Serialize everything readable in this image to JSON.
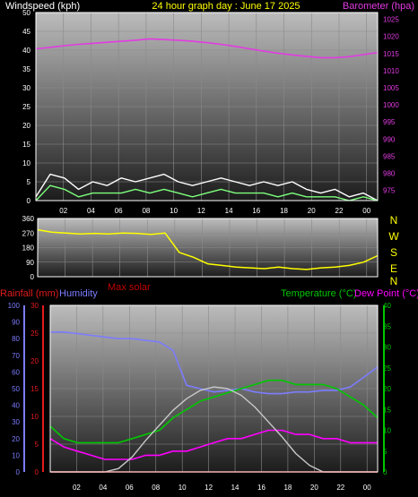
{
  "header": {
    "left": "Windspeed (kph)",
    "center": "24 hour graph day : June 17 2025",
    "right": "Barometer (hpa)"
  },
  "legend": {
    "rainfall": "Rainfall (mm)",
    "humidity": "Humidity",
    "max_solar": "Max solar",
    "temperature": "Temperature (°C)",
    "dew_point": "Dew Point (°C)"
  },
  "compass": [
    "N",
    "W",
    "S",
    "E",
    "N"
  ],
  "colors": {
    "background": "#000000",
    "windspeed": "#ffffff",
    "wind_avg": "#7cff7c",
    "wind_green": "#00b000",
    "barometer": "#e23be2",
    "direction": "#ffff00",
    "rainfall": "#e11b1b",
    "humidity": "#7c7cff",
    "max_solar": "#c8c8c8",
    "temperature": "#00c800",
    "dew_point": "#ff00ff",
    "max_solar_label": "#c00000"
  },
  "chart_data": [
    {
      "type": "line",
      "name": "wind_barometer",
      "title": "24 hour graph day : June 17 2025",
      "x_tick_labels": [
        "02",
        "04",
        "06",
        "08",
        "10",
        "12",
        "14",
        "16",
        "18",
        "20",
        "22",
        "00"
      ],
      "ylabel_left": "Windspeed (kph)",
      "ylim_left": [
        0,
        50
      ],
      "y_ticks_left": [
        "0",
        "5",
        "10",
        "15",
        "20",
        "25",
        "30",
        "35",
        "40",
        "45",
        "50"
      ],
      "ylabel_right": "Barometer (hpa)",
      "ylim_right": [
        972,
        1027
      ],
      "y_ticks_right": [
        "975",
        "980",
        "985",
        "990",
        "995",
        "1000",
        "1005",
        "1010",
        "1015",
        "1020",
        "1025"
      ],
      "grid": true,
      "series": [
        {
          "name": "Barometer (hpa)",
          "axis": "right",
          "x": [
            0,
            1,
            2,
            3,
            4,
            5,
            6,
            7,
            8,
            9,
            10,
            11,
            12,
            13,
            14,
            15,
            16,
            17,
            18,
            19,
            20,
            21,
            22,
            23,
            24
          ],
          "values": [
            1016.4,
            1016.8,
            1017.3,
            1017.7,
            1018.0,
            1018.3,
            1018.6,
            1018.9,
            1019.3,
            1019.1,
            1018.9,
            1018.6,
            1018.2,
            1017.7,
            1017.1,
            1016.4,
            1015.7,
            1015.1,
            1014.6,
            1014.2,
            1013.8,
            1013.8,
            1014.1,
            1014.7,
            1015.3
          ]
        },
        {
          "name": "Wind gust",
          "axis": "left",
          "x": [
            0,
            1,
            2,
            3,
            4,
            5,
            6,
            7,
            8,
            9,
            10,
            11,
            12,
            13,
            14,
            15,
            16,
            17,
            18,
            19,
            20,
            21,
            22,
            23,
            24
          ],
          "values": [
            1,
            7,
            6,
            3,
            5,
            4,
            6,
            5,
            6,
            7,
            5,
            4,
            5,
            6,
            5,
            4,
            5,
            4,
            5,
            3,
            2,
            3,
            1,
            2,
            0
          ]
        },
        {
          "name": "Wind average",
          "axis": "left",
          "x": [
            0,
            1,
            2,
            3,
            4,
            5,
            6,
            7,
            8,
            9,
            10,
            11,
            12,
            13,
            14,
            15,
            16,
            17,
            18,
            19,
            20,
            21,
            22,
            23,
            24
          ],
          "values": [
            0,
            4,
            3,
            1,
            2,
            2,
            2,
            3,
            2,
            3,
            2,
            1,
            2,
            3,
            2,
            2,
            2,
            1,
            2,
            1,
            1,
            1,
            0,
            1,
            0
          ]
        }
      ]
    },
    {
      "type": "scatter",
      "name": "wind_direction",
      "x_tick_labels": [
        "02",
        "04",
        "06",
        "08",
        "10",
        "12",
        "14",
        "16",
        "18",
        "20",
        "22",
        "00"
      ],
      "ylim": [
        0,
        360
      ],
      "y_ticks": [
        "0",
        "90",
        "180",
        "270",
        "360"
      ],
      "series": [
        {
          "name": "Wind direction",
          "x": [
            0,
            1,
            2,
            3,
            4,
            5,
            6,
            7,
            8,
            9,
            10,
            11,
            12,
            13,
            14,
            15,
            16,
            17,
            18,
            19,
            20,
            21,
            22,
            23,
            24
          ],
          "values": [
            290,
            275,
            270,
            265,
            268,
            265,
            270,
            268,
            262,
            270,
            150,
            120,
            80,
            70,
            60,
            55,
            50,
            60,
            50,
            45,
            55,
            60,
            70,
            90,
            130
          ]
        }
      ]
    },
    {
      "type": "line",
      "name": "temperature_humidity",
      "x_tick_labels": [
        "02",
        "04",
        "06",
        "08",
        "10",
        "12",
        "14",
        "16",
        "18",
        "20",
        "22",
        "00"
      ],
      "ylabel_left": "Humidity",
      "ylim_left_humidity": [
        0,
        100
      ],
      "y_ticks_humidity": [
        "0",
        "10",
        "20",
        "30",
        "40",
        "50",
        "60",
        "70",
        "80",
        "90",
        "100"
      ],
      "ylabel_left_rain": "Rainfall (mm)",
      "ylim_left_rain": [
        0,
        30
      ],
      "y_ticks_rain": [
        "0",
        "5",
        "10",
        "15",
        "20",
        "25",
        "30"
      ],
      "ylabel_right": "Temperature (°C)",
      "ylim_right": [
        0,
        40
      ],
      "y_ticks_right": [
        "0",
        "5",
        "10",
        "15",
        "20",
        "25",
        "30",
        "35",
        "40"
      ],
      "grid": true,
      "series": [
        {
          "name": "Humidity",
          "axis": "humidity",
          "x": [
            0,
            1,
            2,
            3,
            4,
            5,
            6,
            7,
            8,
            9,
            10,
            11,
            12,
            13,
            14,
            15,
            16,
            17,
            18,
            19,
            20,
            21,
            22,
            23,
            24
          ],
          "values": [
            84,
            84,
            83,
            82,
            81,
            80,
            80,
            79,
            78,
            73,
            52,
            50,
            48,
            49,
            50,
            48,
            47,
            47,
            48,
            48,
            49,
            49,
            51,
            57,
            63
          ]
        },
        {
          "name": "Temperature (°C)",
          "axis": "right",
          "x": [
            0,
            1,
            2,
            3,
            4,
            5,
            6,
            7,
            8,
            9,
            10,
            11,
            12,
            13,
            14,
            15,
            16,
            17,
            18,
            19,
            20,
            21,
            22,
            23,
            24
          ],
          "values": [
            11,
            8,
            7,
            7,
            7,
            7,
            8,
            9,
            10,
            13,
            15,
            17,
            18,
            19,
            20,
            21,
            22,
            22,
            21,
            21,
            21,
            20,
            18,
            16,
            13
          ]
        },
        {
          "name": "Dew Point (°C)",
          "axis": "right",
          "x": [
            0,
            1,
            2,
            3,
            4,
            5,
            6,
            7,
            8,
            9,
            10,
            11,
            12,
            13,
            14,
            15,
            16,
            17,
            18,
            19,
            20,
            21,
            22,
            23,
            24
          ],
          "values": [
            8,
            6,
            5,
            4,
            3,
            3,
            3,
            4,
            4,
            5,
            5,
            6,
            7,
            8,
            8,
            9,
            10,
            10,
            9,
            9,
            8,
            8,
            7,
            7,
            7
          ]
        },
        {
          "name": "Max solar",
          "axis": "humidity",
          "x": [
            0,
            1,
            2,
            3,
            4,
            5,
            6,
            7,
            8,
            9,
            10,
            11,
            12,
            13,
            14,
            15,
            16,
            17,
            18,
            19,
            20,
            21,
            22,
            23,
            24
          ],
          "values": [
            0,
            0,
            0,
            0,
            0,
            2,
            9,
            19,
            28,
            37,
            44,
            49,
            51,
            50,
            46,
            39,
            30,
            21,
            11,
            4,
            0,
            0,
            0,
            0,
            0
          ]
        },
        {
          "name": "Rainfall (mm)",
          "axis": "rain",
          "x": [
            0,
            24
          ],
          "values": [
            0,
            0
          ]
        }
      ]
    }
  ]
}
